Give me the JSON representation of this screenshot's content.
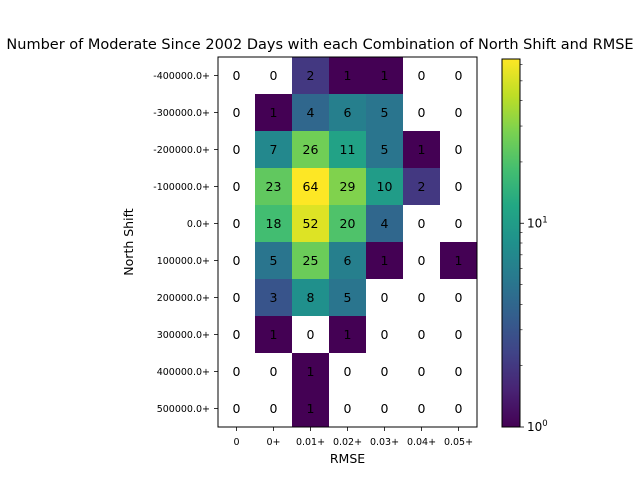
{
  "chart_data": {
    "type": "heatmap",
    "title": "Number of Moderate Since 2002 Days with each Combination of North Shift and RMSE",
    "xlabel": "RMSE",
    "ylabel": "North Shift",
    "x_categories": [
      "0",
      "0+",
      "0.01+",
      "0.02+",
      "0.03+",
      "0.04+",
      "0.05+"
    ],
    "y_categories": [
      "-400000.0+",
      "-300000.0+",
      "-200000.0+",
      "-100000.0+",
      "0.0+",
      "100000.0+",
      "200000.0+",
      "300000.0+",
      "400000.0+",
      "500000.0+"
    ],
    "values": [
      [
        0,
        0,
        2,
        1,
        1,
        0,
        0
      ],
      [
        0,
        1,
        4,
        6,
        5,
        0,
        0
      ],
      [
        0,
        7,
        26,
        11,
        5,
        1,
        0
      ],
      [
        0,
        23,
        64,
        29,
        10,
        2,
        0
      ],
      [
        0,
        18,
        52,
        20,
        4,
        0,
        0
      ],
      [
        0,
        5,
        25,
        6,
        1,
        0,
        1
      ],
      [
        0,
        3,
        8,
        5,
        0,
        0,
        0
      ],
      [
        0,
        1,
        0,
        1,
        0,
        0,
        0
      ],
      [
        0,
        0,
        1,
        0,
        0,
        0,
        0
      ],
      [
        0,
        0,
        1,
        0,
        0,
        0,
        0
      ]
    ],
    "colorbar": {
      "scale": "log",
      "colormap": "viridis",
      "range": [
        1,
        64
      ],
      "tick_labels": [
        "10^0",
        "10^1"
      ]
    },
    "zero_color": "#ffffff"
  }
}
